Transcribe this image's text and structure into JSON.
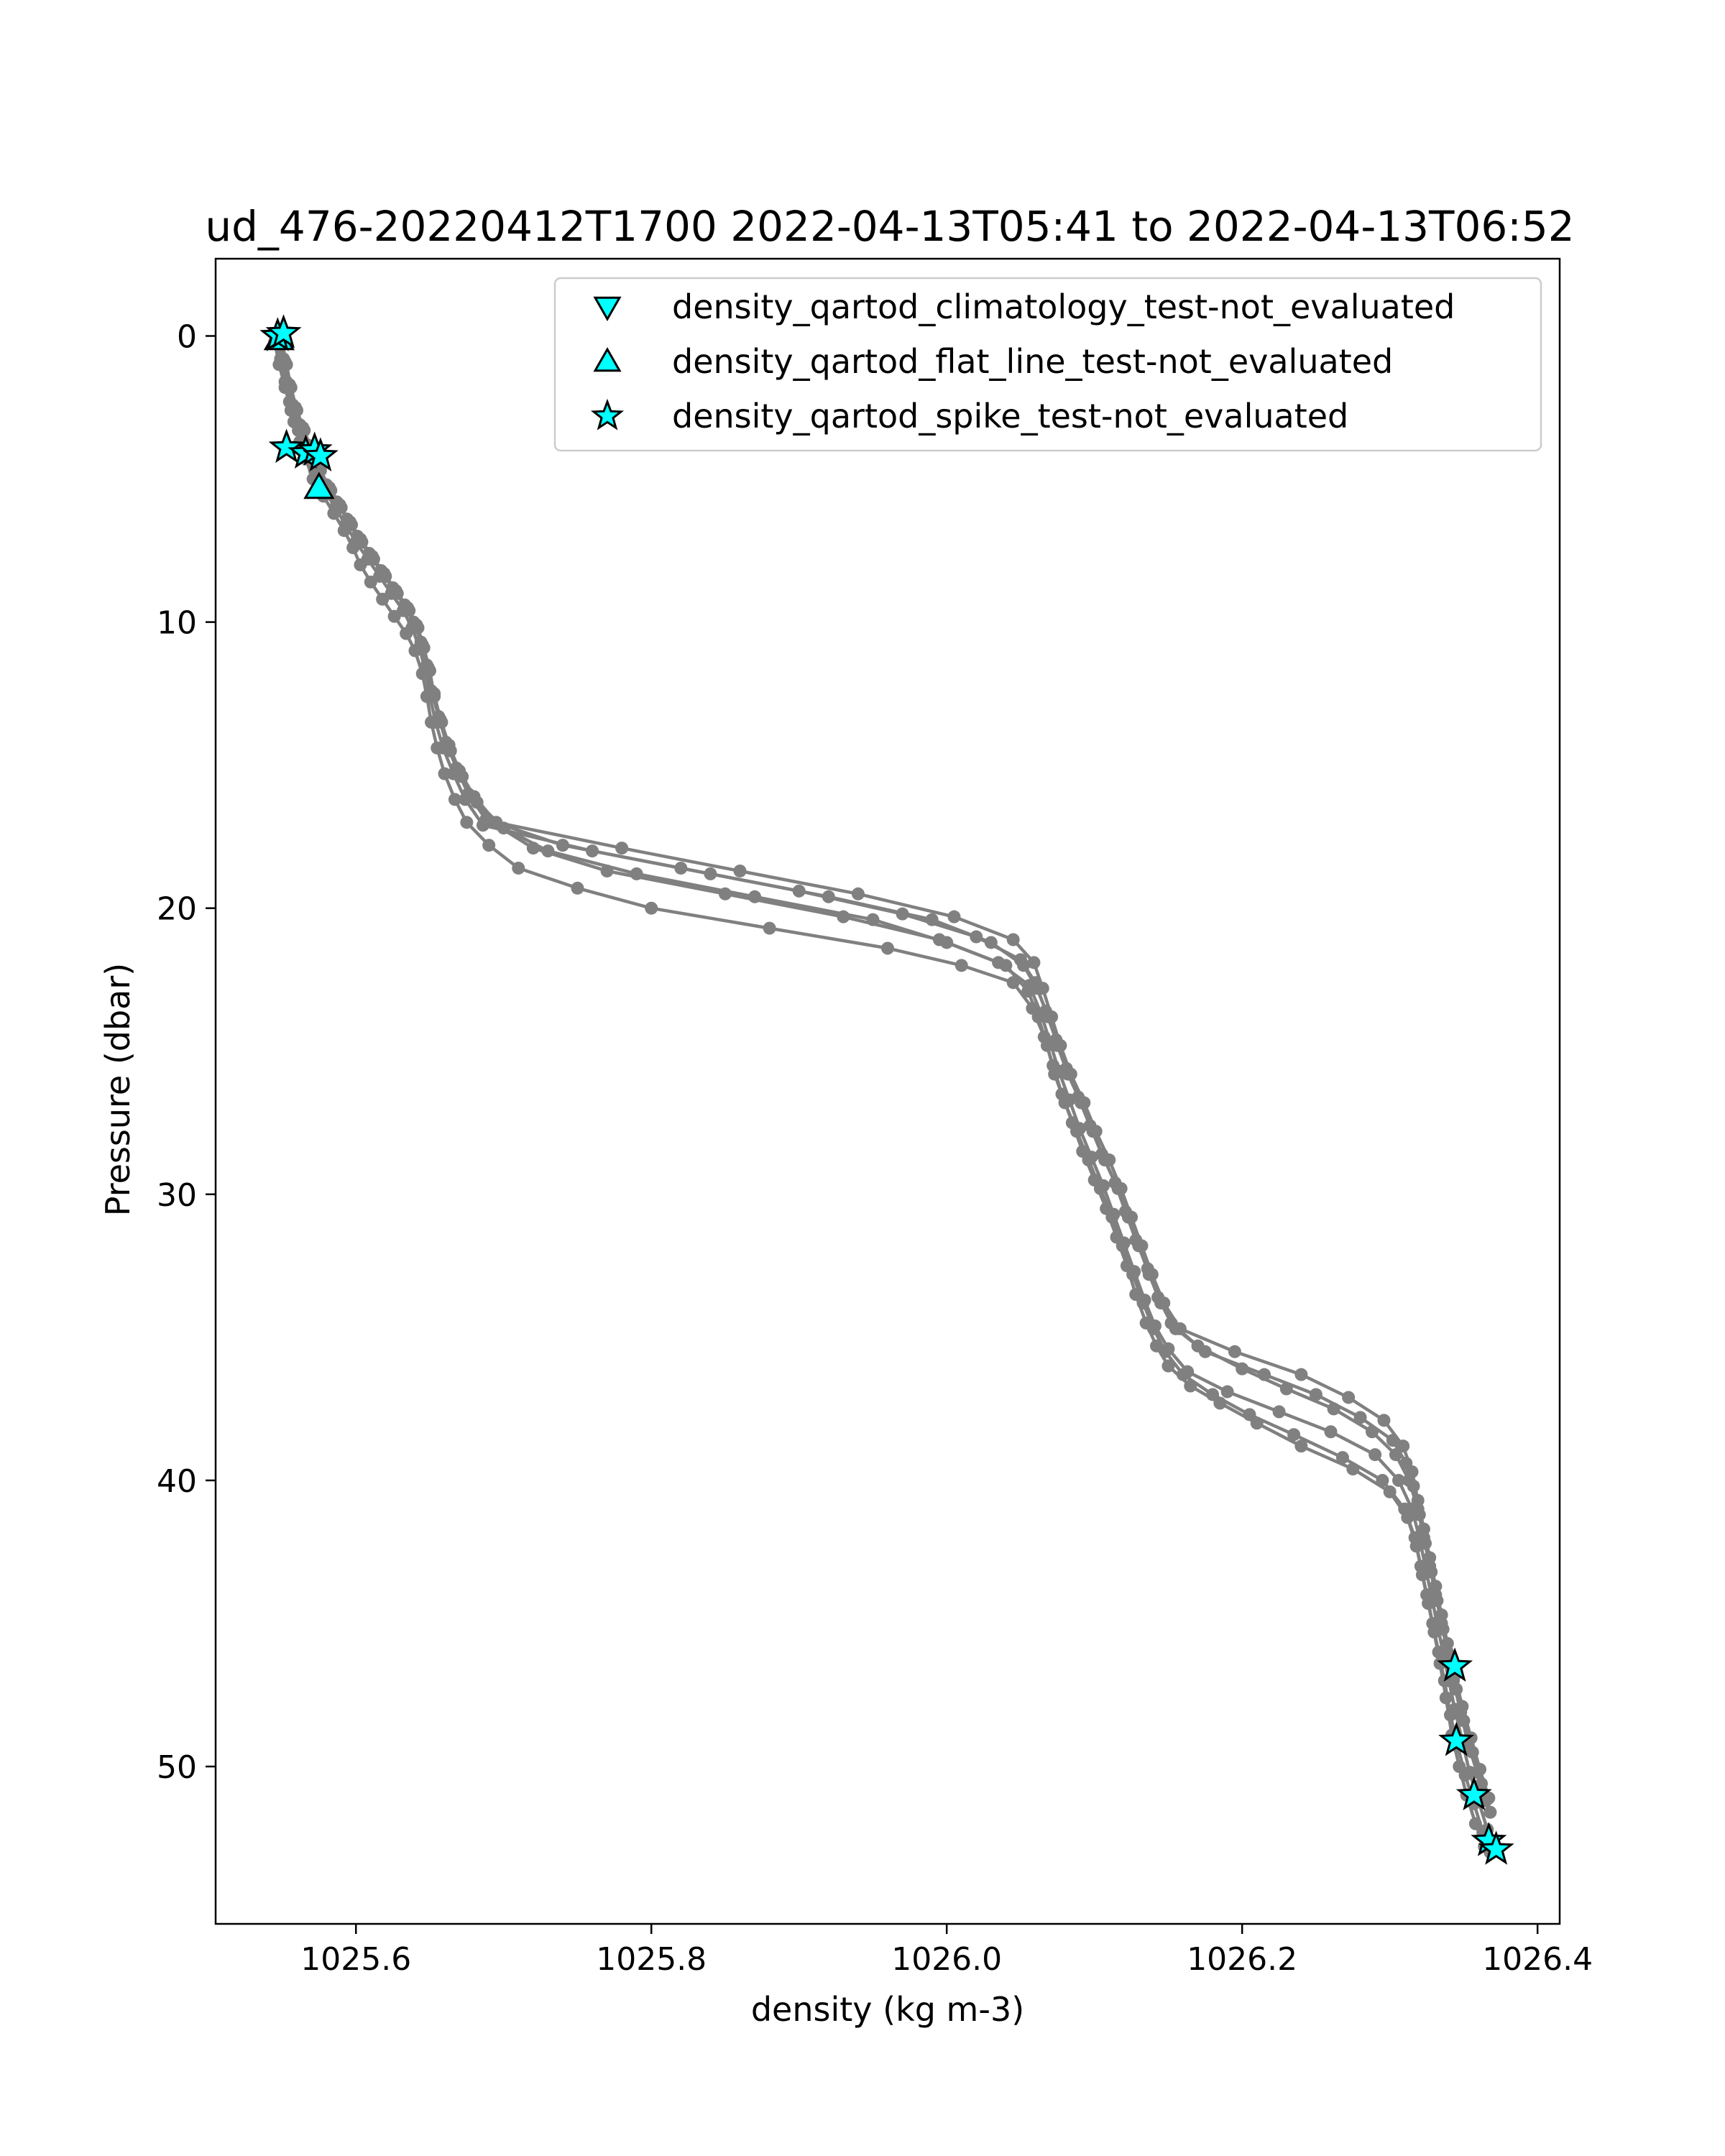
{
  "chart_data": {
    "type": "line",
    "title": "ud_476-20220412T1700 2022-04-13T05:41 to 2022-04-13T06:52",
    "xlabel": "density (kg m-3)",
    "ylabel": "Pressure (dbar)",
    "xlim": [
      1025.505,
      1026.415
    ],
    "ylim": [
      55.5,
      -2.7
    ],
    "y_inverted": true,
    "grid": false,
    "x_ticks": [
      {
        "value": 1025.6,
        "label": "1025.6"
      },
      {
        "value": 1025.8,
        "label": "1025.8"
      },
      {
        "value": 1026.0,
        "label": "1026.0"
      },
      {
        "value": 1026.2,
        "label": "1026.2"
      },
      {
        "value": 1026.4,
        "label": "1026.4"
      }
    ],
    "y_ticks": [
      {
        "value": 0,
        "label": "0"
      },
      {
        "value": 10,
        "label": "10"
      },
      {
        "value": 20,
        "label": "20"
      },
      {
        "value": 30,
        "label": "30"
      },
      {
        "value": 40,
        "label": "40"
      },
      {
        "value": 50,
        "label": "50"
      }
    ],
    "line_color": "#808080",
    "marker_color": "#00FFFF",
    "legend_position": "top-right",
    "series": [
      {
        "x": [
          1025.548,
          1025.551,
          1025.553,
          1025.555,
          1025.558,
          1025.562,
          1025.566,
          1025.571,
          1025.578,
          1025.585,
          1025.592,
          1025.598,
          1025.603,
          1025.61,
          1025.618,
          1025.626,
          1025.634,
          1025.64,
          1025.645,
          1025.648,
          1025.651,
          1025.655,
          1025.66,
          1025.667,
          1025.675,
          1025.69,
          1025.71,
          1025.75,
          1025.8,
          1025.88,
          1025.96,
          1026.01,
          1026.045,
          1026.058,
          1026.066,
          1026.072,
          1026.078,
          1026.085,
          1026.092,
          1026.1,
          1026.108,
          1026.115,
          1026.122,
          1026.128,
          1026.135,
          1026.142,
          1026.15,
          1026.165,
          1026.185,
          1026.21,
          1026.24,
          1026.275,
          1026.3,
          1026.312,
          1026.318,
          1026.322,
          1026.326,
          1026.33,
          1026.334,
          1026.338,
          1026.342,
          1026.347,
          1026.352,
          1026.358,
          1026.364
        ],
        "y": [
          0.0,
          0.8,
          1.6,
          2.3,
          3.0,
          3.7,
          4.3,
          5.0,
          5.6,
          6.2,
          6.8,
          7.4,
          8.0,
          8.6,
          9.2,
          9.8,
          10.4,
          11.0,
          11.8,
          12.6,
          13.5,
          14.4,
          15.3,
          16.2,
          17.0,
          17.8,
          18.6,
          19.3,
          20.0,
          20.7,
          21.4,
          22.0,
          22.6,
          23.5,
          24.5,
          25.5,
          26.5,
          27.5,
          28.5,
          29.5,
          30.5,
          31.5,
          32.5,
          33.5,
          34.5,
          35.3,
          36.0,
          36.7,
          37.3,
          38.0,
          38.8,
          39.6,
          40.4,
          41.3,
          42.3,
          43.3,
          44.3,
          45.3,
          46.4,
          47.6,
          48.9,
          50.0,
          51.0,
          52.0,
          52.8
        ]
      },
      {
        "x": [
          1025.55,
          1025.553,
          1025.556,
          1025.56,
          1025.565,
          1025.57,
          1025.576,
          1025.583,
          1025.59,
          1025.597,
          1025.604,
          1025.612,
          1025.62,
          1025.628,
          1025.636,
          1025.642,
          1025.646,
          1025.65,
          1025.653,
          1025.658,
          1025.664,
          1025.672,
          1025.682,
          1025.7,
          1025.73,
          1025.79,
          1025.87,
          1025.95,
          1026.0,
          1026.04,
          1026.055,
          1026.062,
          1026.068,
          1026.073,
          1026.08,
          1026.088,
          1026.096,
          1026.104,
          1026.112,
          1026.119,
          1026.126,
          1026.133,
          1026.14,
          1026.148,
          1026.16,
          1026.18,
          1026.205,
          1026.235,
          1026.268,
          1026.295,
          1026.31,
          1026.317,
          1026.321,
          1026.325,
          1026.329,
          1026.333,
          1026.337,
          1026.341,
          1026.346,
          1026.351,
          1026.357,
          1026.363,
          1026.368
        ],
        "y": [
          0.2,
          1.0,
          1.8,
          2.6,
          3.3,
          4.0,
          4.7,
          5.4,
          6.0,
          6.6,
          7.2,
          7.8,
          8.4,
          9.0,
          9.6,
          10.2,
          10.9,
          11.7,
          12.6,
          13.5,
          14.5,
          15.4,
          16.3,
          17.2,
          18.0,
          18.8,
          19.6,
          20.4,
          21.2,
          22.0,
          22.9,
          23.8,
          24.8,
          25.8,
          26.8,
          27.8,
          28.8,
          29.8,
          30.8,
          31.8,
          32.8,
          33.8,
          34.7,
          35.5,
          36.3,
          37.0,
          37.7,
          38.4,
          39.2,
          40.0,
          41.0,
          42.0,
          43.0,
          44.0,
          45.0,
          46.0,
          47.0,
          48.2,
          49.3,
          50.3,
          51.3,
          52.3,
          53.0
        ]
      },
      {
        "x": [
          1025.547,
          1025.55,
          1025.554,
          1025.559,
          1025.564,
          1025.569,
          1025.575,
          1025.581,
          1025.588,
          1025.596,
          1025.603,
          1025.611,
          1025.619,
          1025.627,
          1025.635,
          1025.641,
          1025.645,
          1025.649,
          1025.652,
          1025.657,
          1025.662,
          1025.669,
          1025.678,
          1025.692,
          1025.72,
          1025.77,
          1025.85,
          1025.93,
          1025.995,
          1026.035,
          1026.056,
          1026.064,
          1026.07,
          1026.076,
          1026.083,
          1026.09,
          1026.098,
          1026.106,
          1026.113,
          1026.12,
          1026.127,
          1026.134,
          1026.141,
          1026.15,
          1026.163,
          1026.19,
          1026.225,
          1026.26,
          1026.29,
          1026.306,
          1026.315,
          1026.32,
          1026.324,
          1026.328,
          1026.332,
          1026.336,
          1026.34,
          1026.344,
          1026.349,
          1026.354,
          1026.36,
          1026.366
        ],
        "y": [
          0.1,
          0.9,
          1.7,
          2.5,
          3.2,
          3.9,
          4.6,
          5.3,
          5.9,
          6.5,
          7.1,
          7.7,
          8.3,
          8.9,
          9.5,
          10.1,
          10.8,
          11.6,
          12.5,
          13.4,
          14.3,
          15.2,
          16.1,
          17.0,
          17.9,
          18.7,
          19.5,
          20.3,
          21.1,
          21.9,
          22.7,
          23.7,
          24.7,
          25.7,
          26.7,
          27.7,
          28.7,
          29.7,
          30.7,
          31.7,
          32.7,
          33.7,
          34.6,
          35.4,
          36.2,
          36.9,
          37.6,
          38.3,
          39.1,
          40.0,
          41.0,
          42.0,
          43.0,
          44.0,
          45.0,
          46.0,
          47.0,
          48.0,
          49.1,
          50.2,
          51.2,
          52.2
        ]
      },
      {
        "x": [
          1025.546,
          1025.549,
          1025.552,
          1025.557,
          1025.562,
          1025.567,
          1025.573,
          1025.58,
          1025.587,
          1025.594,
          1025.601,
          1025.609,
          1025.617,
          1025.625,
          1025.633,
          1025.639,
          1025.644,
          1025.648,
          1025.651,
          1025.656,
          1025.661,
          1025.668,
          1025.676,
          1025.688,
          1025.74,
          1025.82,
          1025.9,
          1025.97,
          1026.02,
          1026.05,
          1026.06,
          1026.067,
          1026.074,
          1026.081,
          1026.089,
          1026.097,
          1026.105,
          1026.114,
          1026.121,
          1026.128,
          1026.136,
          1026.143,
          1026.152,
          1026.17,
          1026.2,
          1026.23,
          1026.262,
          1026.288,
          1026.304,
          1026.313,
          1026.319,
          1026.323,
          1026.327,
          1026.331,
          1026.335,
          1026.339,
          1026.343,
          1026.348,
          1026.353,
          1026.359,
          1026.365
        ],
        "y": [
          0.0,
          0.8,
          1.6,
          2.4,
          3.1,
          3.8,
          4.5,
          5.2,
          5.8,
          6.4,
          7.0,
          7.6,
          8.2,
          8.8,
          9.4,
          10.0,
          10.7,
          11.5,
          12.4,
          13.3,
          14.2,
          15.1,
          16.0,
          16.9,
          17.8,
          18.6,
          19.4,
          20.2,
          21.0,
          21.8,
          22.6,
          23.6,
          24.6,
          25.6,
          26.6,
          27.6,
          28.6,
          29.6,
          30.6,
          31.6,
          32.6,
          33.6,
          34.5,
          35.3,
          36.1,
          36.8,
          37.5,
          38.3,
          39.1,
          40.0,
          41.0,
          42.0,
          43.0,
          44.0,
          45.0,
          46.0,
          47.0,
          48.1,
          49.2,
          50.2,
          51.2
        ]
      },
      {
        "x": [
          1025.545,
          1025.548,
          1025.552,
          1025.556,
          1025.561,
          1025.566,
          1025.572,
          1025.579,
          1025.586,
          1025.593,
          1025.6,
          1025.608,
          1025.616,
          1025.624,
          1025.632,
          1025.638,
          1025.643,
          1025.647,
          1025.65,
          1025.654,
          1025.659,
          1025.666,
          1025.674,
          1025.686,
          1025.76,
          1025.84,
          1025.92,
          1025.99,
          1026.03,
          1026.052,
          1026.061,
          1026.069,
          1026.075,
          1026.082,
          1026.091,
          1026.099,
          1026.107,
          1026.116,
          1026.123,
          1026.13,
          1026.137,
          1026.145,
          1026.155,
          1026.175,
          1026.215,
          1026.25,
          1026.28,
          1026.302,
          1026.311,
          1026.316,
          1026.32,
          1026.324,
          1026.328,
          1026.332,
          1026.336,
          1026.34,
          1026.345,
          1026.35,
          1026.356,
          1026.362,
          1026.368
        ],
        "y": [
          0.2,
          1.0,
          1.8,
          2.6,
          3.3,
          4.0,
          4.7,
          5.4,
          6.0,
          6.6,
          7.2,
          7.8,
          8.4,
          9.0,
          9.6,
          10.2,
          10.9,
          11.7,
          12.6,
          13.5,
          14.4,
          15.3,
          16.2,
          17.1,
          18.0,
          18.8,
          19.6,
          20.4,
          21.2,
          22.0,
          22.8,
          23.8,
          24.8,
          25.8,
          26.8,
          27.8,
          28.8,
          29.8,
          30.8,
          31.8,
          32.8,
          33.8,
          34.7,
          35.5,
          36.3,
          37.0,
          37.8,
          38.6,
          39.4,
          40.2,
          41.2,
          42.2,
          43.2,
          44.2,
          45.2,
          46.2,
          47.3,
          48.4,
          49.5,
          50.6,
          51.6
        ]
      },
      {
        "x": [
          1025.549,
          1025.552,
          1025.555,
          1025.559,
          1025.563,
          1025.568,
          1025.574,
          1025.582,
          1025.589,
          1025.595,
          1025.602,
          1025.61,
          1025.618,
          1025.626,
          1025.634,
          1025.64,
          1025.645,
          1025.649,
          1025.653,
          1025.657,
          1025.663,
          1025.67,
          1025.68,
          1025.695,
          1025.78,
          1025.86,
          1025.94,
          1026.005,
          1026.045,
          1026.059,
          1026.065,
          1026.071,
          1026.077,
          1026.084,
          1026.093,
          1026.101,
          1026.11,
          1026.118,
          1026.125,
          1026.132,
          1026.139,
          1026.147,
          1026.158,
          1026.195,
          1026.24,
          1026.272,
          1026.296,
          1026.309,
          1026.315,
          1026.319,
          1026.323,
          1026.327,
          1026.331,
          1026.335,
          1026.339,
          1026.344,
          1026.349,
          1026.355,
          1026.361,
          1026.367
        ],
        "y": [
          0.1,
          0.9,
          1.7,
          2.5,
          3.2,
          3.9,
          4.6,
          5.3,
          5.9,
          6.5,
          7.1,
          7.7,
          8.3,
          8.9,
          9.5,
          10.1,
          10.8,
          11.6,
          12.5,
          13.4,
          14.3,
          15.2,
          16.1,
          17.0,
          17.9,
          18.7,
          19.5,
          20.3,
          21.1,
          21.9,
          22.8,
          23.8,
          24.8,
          25.8,
          26.8,
          27.8,
          28.8,
          29.8,
          30.8,
          31.8,
          32.8,
          33.8,
          34.7,
          35.5,
          36.3,
          37.1,
          37.9,
          38.8,
          39.7,
          40.7,
          41.7,
          42.7,
          43.7,
          44.7,
          45.7,
          46.8,
          47.9,
          49.0,
          50.1,
          51.1
        ]
      }
    ],
    "flag_series": [
      {
        "name": "density_qartod_climatology_test-not_evaluated",
        "marker": "triangle-down",
        "x": [],
        "y": []
      },
      {
        "name": "density_qartod_flat_line_test-not_evaluated",
        "marker": "triangle-up",
        "x": [
          1025.548,
          1025.575
        ],
        "y": [
          0.1,
          5.3
        ]
      },
      {
        "name": "density_qartod_spike_test-not_evaluated",
        "marker": "star",
        "x": [
          1025.547,
          1025.551,
          1025.553,
          1025.566,
          1025.572,
          1025.576,
          1026.344,
          1026.345,
          1026.357,
          1026.367,
          1026.372
        ],
        "y": [
          0.0,
          -0.1,
          3.9,
          4.1,
          4.0,
          4.2,
          46.5,
          49.1,
          51.0,
          52.6,
          52.9
        ]
      }
    ]
  }
}
